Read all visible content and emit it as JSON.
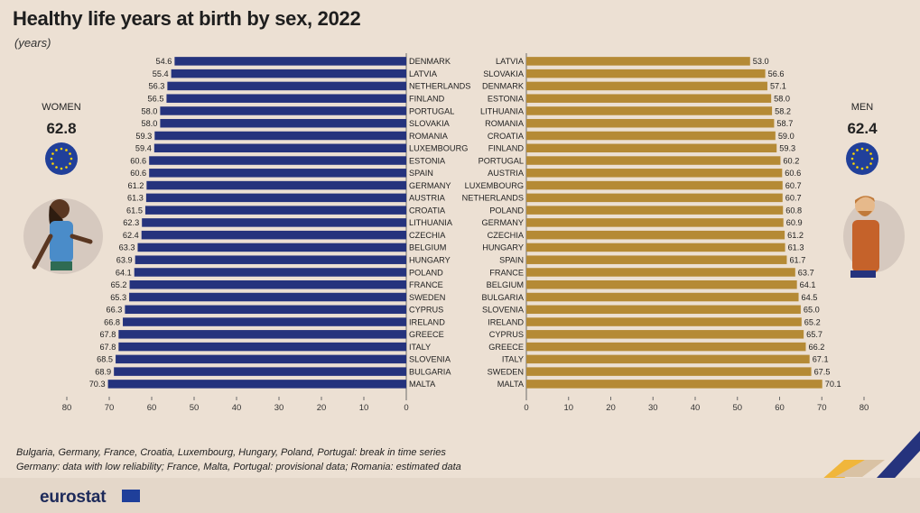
{
  "title": "Healthy life years at birth by sex, 2022",
  "subtitle": "(years)",
  "women": {
    "label": "WOMEN",
    "value": "62.8"
  },
  "men": {
    "label": "MEN",
    "value": "62.4"
  },
  "notes": [
    "Bulgaria, Germany, France, Croatia, Luxembourg, Hungary, Poland, Portugal: break in time series",
    "Germany: data with low reliability; France, Malta, Portugal: provisional data; Romania: estimated data"
  ],
  "logo": "eurostat",
  "colors": {
    "women_bar": "#25337d",
    "men_bar": "#b58a35",
    "background": "#ece0d3"
  },
  "chart_data": [
    {
      "type": "bar",
      "orientation": "horizontal",
      "direction": "right-to-left",
      "series_label": "WOMEN",
      "categories": [
        "DENMARK",
        "LATVIA",
        "NETHERLANDS",
        "FINLAND",
        "PORTUGAL",
        "SLOVAKIA",
        "ROMANIA",
        "LUXEMBOURG",
        "ESTONIA",
        "SPAIN",
        "GERMANY",
        "AUSTRIA",
        "CROATIA",
        "LITHUANIA",
        "CZECHIA",
        "BELGIUM",
        "HUNGARY",
        "POLAND",
        "FRANCE",
        "SWEDEN",
        "CYPRUS",
        "IRELAND",
        "GREECE",
        "ITALY",
        "SLOVENIA",
        "BULGARIA",
        "MALTA"
      ],
      "values": [
        54.6,
        55.4,
        56.3,
        56.5,
        58.0,
        58.0,
        59.3,
        59.4,
        60.6,
        60.6,
        61.2,
        61.3,
        61.5,
        62.3,
        62.4,
        63.3,
        63.9,
        64.1,
        65.2,
        65.3,
        66.3,
        66.8,
        67.8,
        67.8,
        68.5,
        68.9,
        70.3
      ],
      "value_labels": [
        "54.6",
        "55.4",
        "56.3",
        "56.5",
        "58.0",
        "58.0",
        "59.3",
        "59.4",
        "60.6",
        "60.6",
        "61.2",
        "61.3",
        "61.5",
        "62.3",
        "62.4",
        "63.3",
        "63.9",
        "64.1",
        "65.2",
        "65.3",
        "66.3",
        "66.8",
        "67.8",
        "67.8",
        "68.5",
        "68.9",
        "70.3"
      ],
      "xlim": [
        0,
        80
      ],
      "ticks": [
        "80",
        "70",
        "60",
        "50",
        "40",
        "30",
        "20",
        "10",
        "0"
      ]
    },
    {
      "type": "bar",
      "orientation": "horizontal",
      "direction": "left-to-right",
      "series_label": "MEN",
      "categories": [
        "LATVIA",
        "SLOVAKIA",
        "DENMARK",
        "ESTONIA",
        "LITHUANIA",
        "ROMANIA",
        "CROATIA",
        "FINLAND",
        "PORTUGAL",
        "AUSTRIA",
        "LUXEMBOURG",
        "NETHERLANDS",
        "POLAND",
        "GERMANY",
        "CZECHIA",
        "HUNGARY",
        "SPAIN",
        "FRANCE",
        "BELGIUM",
        "BULGARIA",
        "SLOVENIA",
        "IRELAND",
        "CYPRUS",
        "GREECE",
        "ITALY",
        "SWEDEN",
        "MALTA"
      ],
      "values": [
        53.0,
        56.6,
        57.1,
        58.0,
        58.2,
        58.7,
        59.0,
        59.3,
        60.2,
        60.6,
        60.7,
        60.7,
        60.8,
        60.9,
        61.2,
        61.3,
        61.7,
        63.7,
        64.1,
        64.5,
        65.0,
        65.2,
        65.7,
        66.2,
        67.1,
        67.5,
        70.1
      ],
      "value_labels": [
        "53.0",
        "56.6",
        "57.1",
        "58.0",
        "58.2",
        "58.7",
        "59.0",
        "59.3",
        "60.2",
        "60.6",
        "60.7",
        "60.7",
        "60.8",
        "60.9",
        "61.2",
        "61.3",
        "61.7",
        "63.7",
        "64.1",
        "64.5",
        "65.0",
        "65.2",
        "65.7",
        "66.2",
        "67.1",
        "67.5",
        "70.1"
      ],
      "xlim": [
        0,
        80
      ],
      "ticks": [
        "0",
        "10",
        "20",
        "30",
        "40",
        "50",
        "60",
        "70",
        "80"
      ]
    }
  ]
}
